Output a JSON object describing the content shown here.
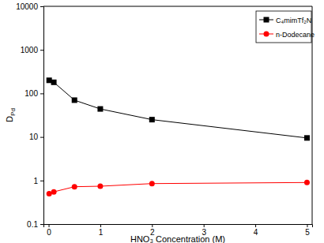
{
  "chart_data": {
    "type": "line",
    "x_label": "HNO₃ Concentration (M)",
    "y_label": "DPd",
    "x": [
      0.01,
      0.1,
      0.5,
      1,
      2,
      5
    ],
    "series": [
      {
        "name": "C₄mimTf₂N",
        "color": "#000000",
        "marker": "square",
        "line_style": "solid",
        "values": [
          200,
          180,
          70,
          44,
          25,
          9.5
        ]
      },
      {
        "name": "n-Dodecane",
        "color": "#ff0000",
        "marker": "circle",
        "line_style": "solid",
        "values": [
          0.5,
          0.55,
          0.72,
          0.74,
          0.85,
          0.9
        ]
      }
    ],
    "xlim": [
      -0.1,
      5.1
    ],
    "xticks": [
      0,
      1,
      2,
      3,
      4,
      5
    ],
    "ylim": [
      0.1,
      10000
    ],
    "yticks": [
      0.1,
      1,
      10,
      100,
      1000,
      10000
    ],
    "log": "y",
    "grid": false,
    "legend": "upper right"
  }
}
